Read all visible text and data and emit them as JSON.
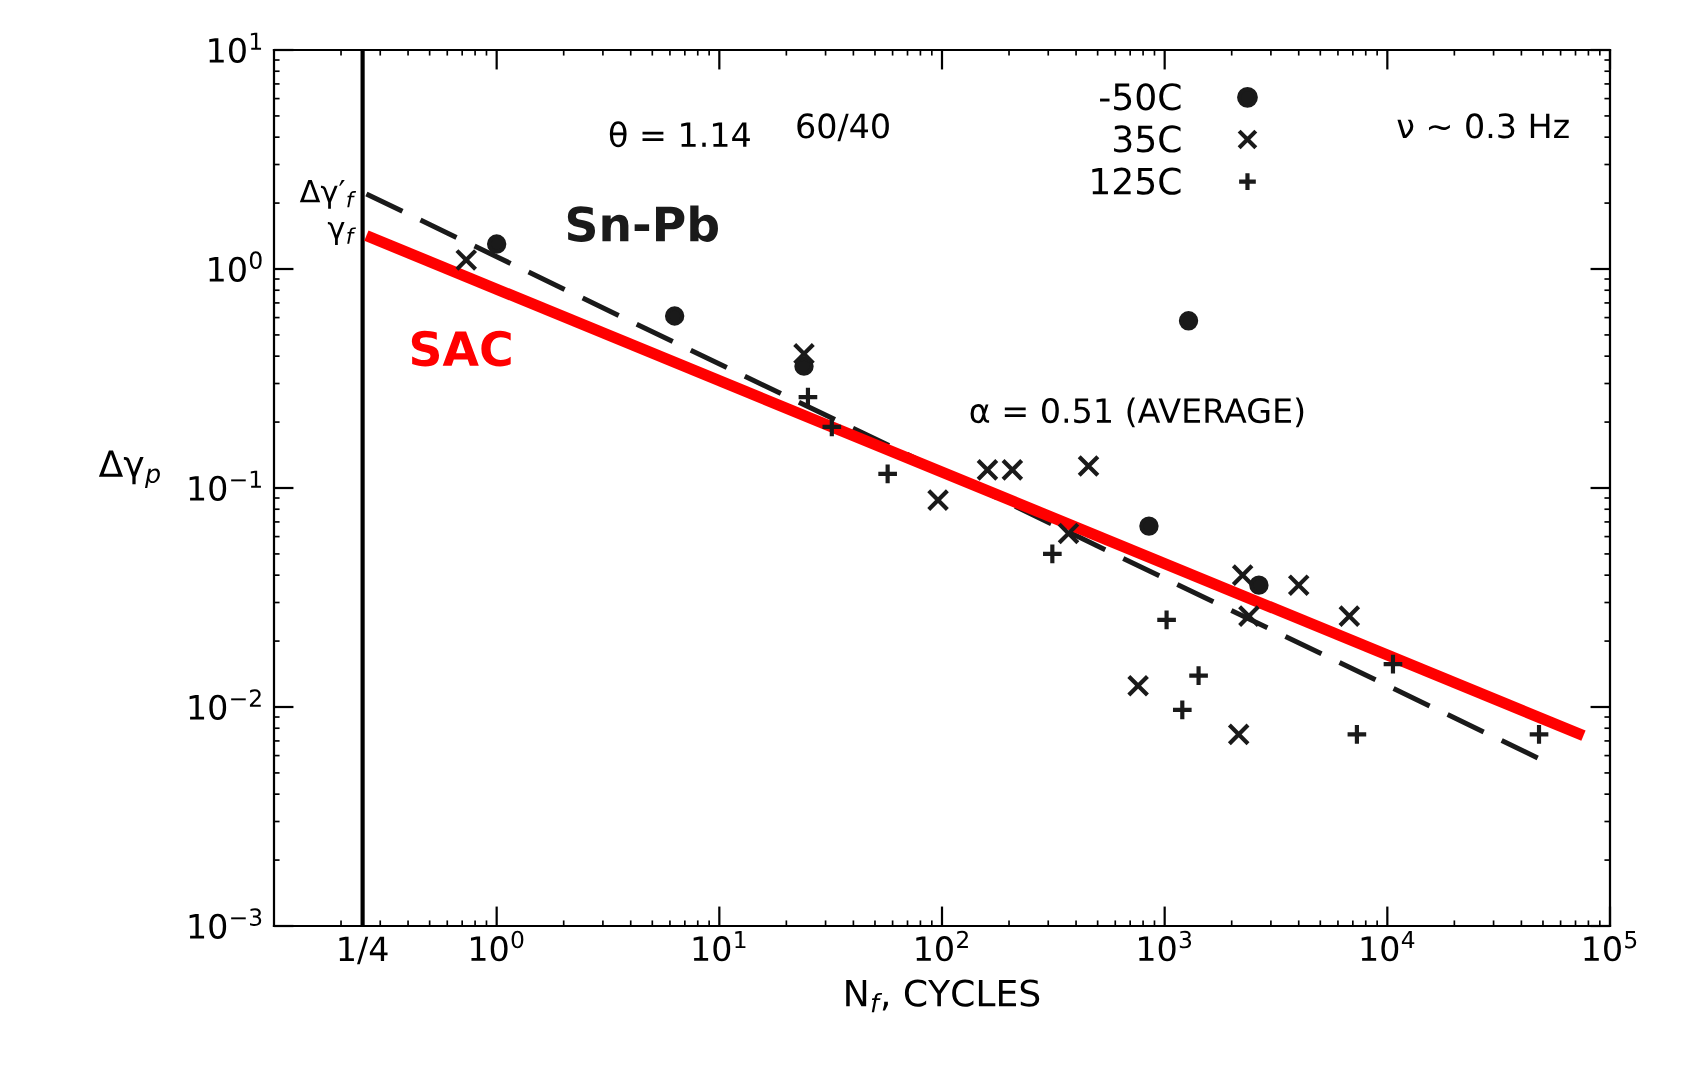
{
  "chart_data": {
    "type": "scatter",
    "xlabel": "N$_{f}$, CYCLES",
    "ylabel": "Δγ$_{p}$",
    "log": "xy",
    "grid": false,
    "legend": "top right",
    "xlim": [
      0.1,
      100000
    ],
    "ylim": [
      0.001,
      10
    ],
    "xticks": [
      {
        "value": 0.25,
        "label": "1/4"
      },
      {
        "value": 1,
        "label": "10$^{0}$"
      },
      {
        "value": 10,
        "label": "10$^{1}$"
      },
      {
        "value": 100,
        "label": "10$^{2}$"
      },
      {
        "value": 1000,
        "label": "10$^{3}$"
      },
      {
        "value": 10000,
        "label": "10$^{4}$"
      },
      {
        "value": 100000,
        "label": "10$^{5}$"
      }
    ],
    "yticks": [
      {
        "value": 0.001,
        "label": "10$^{−3}$"
      },
      {
        "value": 0.01,
        "label": "10$^{−2}$"
      },
      {
        "value": 0.1,
        "label": "10$^{−1}$"
      },
      {
        "value": 1,
        "label": "10$^{0}$"
      },
      {
        "value": 10,
        "label": "10$^{1}$"
      }
    ],
    "ref_lines": [
      {
        "axis": "x",
        "value": 0.25,
        "color": "#000000",
        "line_style": "solid"
      }
    ],
    "series": [
      {
        "name": "-50C",
        "marker": "circle",
        "color": "#1a1a1a",
        "x": [
          1.0,
          6.3,
          24,
          850,
          2650,
          1280
        ],
        "values": [
          1.3,
          0.61,
          0.36,
          0.067,
          0.036,
          0.58
        ]
      },
      {
        "name": "35C",
        "marker": "cross",
        "color": "#1a1a1a",
        "x": [
          0.73,
          24,
          96,
          160,
          207,
          455,
          370,
          760,
          2150,
          2240,
          2390,
          4000,
          6750
        ],
        "values": [
          1.1,
          0.41,
          0.088,
          0.121,
          0.121,
          0.126,
          0.062,
          0.0125,
          0.0075,
          0.04,
          0.026,
          0.036,
          0.026
        ]
      },
      {
        "name": "125C",
        "marker": "plus",
        "color": "#1a1a1a",
        "x": [
          25,
          32,
          57,
          313,
          1020,
          1420,
          1200,
          10600,
          7300,
          48000
        ],
        "values": [
          0.26,
          0.19,
          0.116,
          0.05,
          0.025,
          0.0139,
          0.0097,
          0.0157,
          0.0075,
          0.0075
        ]
      },
      {
        "name": "Sn-Pb",
        "type": "line",
        "line_style": "dashed",
        "color": "#1a1a1a",
        "x": [
          0.26,
          50000
        ],
        "values": [
          2.2,
          0.0057
        ]
      },
      {
        "name": "SAC",
        "type": "line",
        "line_style": "solid",
        "color": "#ff0000",
        "x": [
          0.26,
          76000
        ],
        "values": [
          1.42,
          0.0074
        ]
      }
    ],
    "annotations": [
      {
        "text": "Δγ′$_{f}$",
        "x": 0.25,
        "y": 2.2
      },
      {
        "text": "γ$_{f}$",
        "x": 0.25,
        "y": 1.5
      },
      "θ = 1.14",
      "60/40",
      "ν ~ 0.3 Hz",
      "α = 0.51 (AVERAGE)"
    ]
  }
}
